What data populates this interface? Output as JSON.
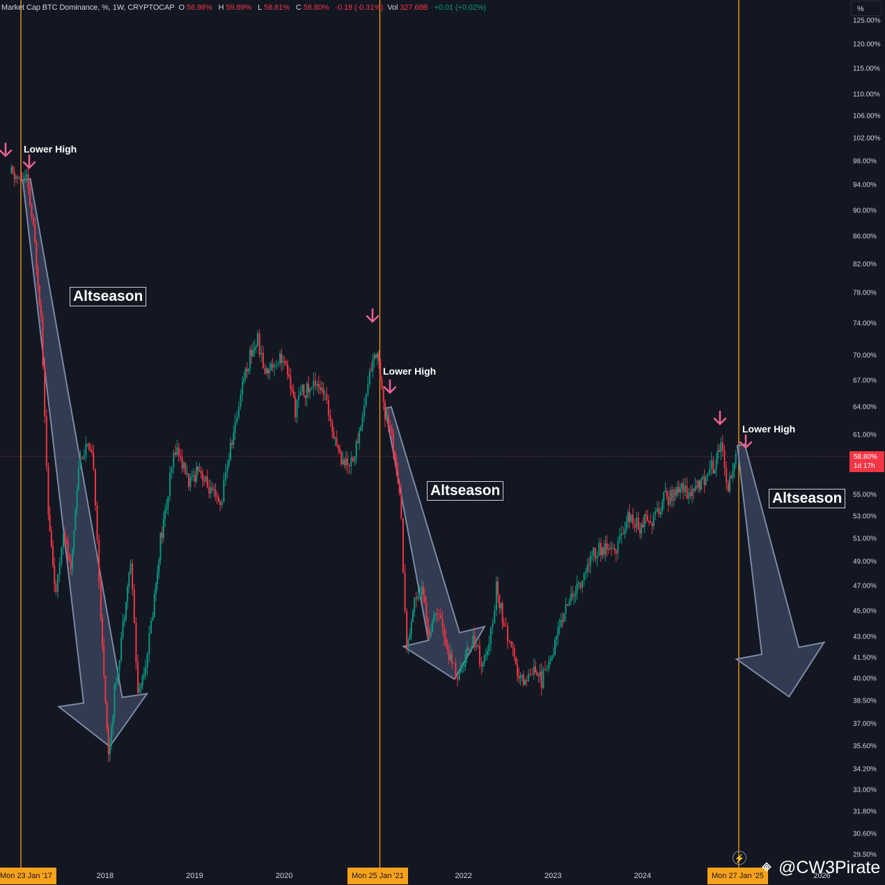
{
  "header": {
    "title": "Market Cap BTC Dominance, %, 1W, CRYPTOCAP",
    "o_label": "O",
    "o_value": "58.98%",
    "h_label": "H",
    "h_value": "59.89%",
    "l_label": "L",
    "l_value": "58.61%",
    "c_label": "C",
    "c_value": "58.80%",
    "change": "-0.18 (-0.31%)",
    "vol_label": "Vol",
    "vol_value": "327.68B",
    "vol_change": "+0.01 (+0.02%)"
  },
  "scale_button": "%",
  "price_tag": {
    "price": "58.80%",
    "countdown": "1d 17h"
  },
  "watermark": "@CW3Pirate",
  "vertical_markers": [
    "Mon 23 Jan '17",
    "Mon 25 Jan '21",
    "Mon 27 Jan '25"
  ],
  "annotations": {
    "lower_high": "Lower High",
    "altseason": "Altseason"
  },
  "colors": {
    "background": "#131722",
    "up": "#089981",
    "down": "#f23645",
    "marker_line": "#f7a21b",
    "arrow": "#f06292",
    "projection_fill": "#4a5a78"
  },
  "chart_data": {
    "type": "candlestick",
    "title": "Market Cap BTC Dominance, %, 1W, CRYPTOCAP",
    "y_scale": "log",
    "y_ticks": [
      "29.50%",
      "30.60%",
      "31.80%",
      "33.00%",
      "34.20%",
      "35.60%",
      "37.00%",
      "38.50%",
      "40.00%",
      "41.50%",
      "43.00%",
      "45.00%",
      "47.00%",
      "49.00%",
      "51.00%",
      "53.00%",
      "55.00%",
      "58.00%",
      "61.00%",
      "64.00%",
      "67.00%",
      "70.00%",
      "74.00%",
      "78.00%",
      "82.00%",
      "86.00%",
      "90.00%",
      "94.00%",
      "98.00%",
      "102.00%",
      "106.00%",
      "110.00%",
      "115.00%",
      "120.00%",
      "125.00%"
    ],
    "x_ticks": [
      "2018",
      "2019",
      "2020",
      "2022",
      "2023",
      "2024",
      "2026"
    ],
    "last_close": 58.8,
    "approx_series": [
      {
        "date": "2016-12",
        "value": 96
      },
      {
        "date": "2017-01",
        "value": 95
      },
      {
        "date": "2017-02",
        "value": 95
      },
      {
        "date": "2017-03",
        "value": 87
      },
      {
        "date": "2017-04",
        "value": 75
      },
      {
        "date": "2017-05",
        "value": 53
      },
      {
        "date": "2017-06",
        "value": 46
      },
      {
        "date": "2017-07",
        "value": 52
      },
      {
        "date": "2017-08",
        "value": 48
      },
      {
        "date": "2017-09",
        "value": 58
      },
      {
        "date": "2017-10",
        "value": 60
      },
      {
        "date": "2017-11",
        "value": 58
      },
      {
        "date": "2017-12",
        "value": 44
      },
      {
        "date": "2018-01",
        "value": 35
      },
      {
        "date": "2018-02",
        "value": 40
      },
      {
        "date": "2018-03",
        "value": 44
      },
      {
        "date": "2018-04",
        "value": 49
      },
      {
        "date": "2018-05",
        "value": 39
      },
      {
        "date": "2018-06",
        "value": 41
      },
      {
        "date": "2018-07",
        "value": 45
      },
      {
        "date": "2018-08",
        "value": 51
      },
      {
        "date": "2018-09",
        "value": 55
      },
      {
        "date": "2018-10",
        "value": 60
      },
      {
        "date": "2018-12",
        "value": 56
      },
      {
        "date": "2019-01",
        "value": 58
      },
      {
        "date": "2019-02",
        "value": 56
      },
      {
        "date": "2019-03",
        "value": 55
      },
      {
        "date": "2019-04",
        "value": 54
      },
      {
        "date": "2019-05",
        "value": 58
      },
      {
        "date": "2019-06",
        "value": 62
      },
      {
        "date": "2019-07",
        "value": 67
      },
      {
        "date": "2019-08",
        "value": 70
      },
      {
        "date": "2019-09",
        "value": 72
      },
      {
        "date": "2019-10",
        "value": 68
      },
      {
        "date": "2019-11",
        "value": 69
      },
      {
        "date": "2019-12",
        "value": 70
      },
      {
        "date": "2020-01",
        "value": 68
      },
      {
        "date": "2020-02",
        "value": 64
      },
      {
        "date": "2020-03",
        "value": 66
      },
      {
        "date": "2020-04",
        "value": 66
      },
      {
        "date": "2020-05",
        "value": 67
      },
      {
        "date": "2020-06",
        "value": 65
      },
      {
        "date": "2020-07",
        "value": 62
      },
      {
        "date": "2020-08",
        "value": 59
      },
      {
        "date": "2020-09",
        "value": 58
      },
      {
        "date": "2020-10",
        "value": 59
      },
      {
        "date": "2020-11",
        "value": 63
      },
      {
        "date": "2020-12",
        "value": 68
      },
      {
        "date": "2021-01",
        "value": 71
      },
      {
        "date": "2021-02",
        "value": 63
      },
      {
        "date": "2021-03",
        "value": 61
      },
      {
        "date": "2021-04",
        "value": 56
      },
      {
        "date": "2021-05",
        "value": 42
      },
      {
        "date": "2021-06",
        "value": 46
      },
      {
        "date": "2021-07",
        "value": 47
      },
      {
        "date": "2021-08",
        "value": 43
      },
      {
        "date": "2021-09",
        "value": 45
      },
      {
        "date": "2021-10",
        "value": 43
      },
      {
        "date": "2021-11",
        "value": 41
      },
      {
        "date": "2021-12",
        "value": 40
      },
      {
        "date": "2022-01",
        "value": 42
      },
      {
        "date": "2022-02",
        "value": 43
      },
      {
        "date": "2022-03",
        "value": 41
      },
      {
        "date": "2022-04",
        "value": 42
      },
      {
        "date": "2022-05",
        "value": 47
      },
      {
        "date": "2022-06",
        "value": 44
      },
      {
        "date": "2022-07",
        "value": 42
      },
      {
        "date": "2022-08",
        "value": 40
      },
      {
        "date": "2022-09",
        "value": 40
      },
      {
        "date": "2022-10",
        "value": 41
      },
      {
        "date": "2022-11",
        "value": 40
      },
      {
        "date": "2022-12",
        "value": 41
      },
      {
        "date": "2023-01",
        "value": 43
      },
      {
        "date": "2023-02",
        "value": 45
      },
      {
        "date": "2023-03",
        "value": 46
      },
      {
        "date": "2023-04",
        "value": 47
      },
      {
        "date": "2023-05",
        "value": 48
      },
      {
        "date": "2023-06",
        "value": 50
      },
      {
        "date": "2023-07",
        "value": 50
      },
      {
        "date": "2023-08",
        "value": 50
      },
      {
        "date": "2023-09",
        "value": 50
      },
      {
        "date": "2023-10",
        "value": 52
      },
      {
        "date": "2023-11",
        "value": 53
      },
      {
        "date": "2023-12",
        "value": 52
      },
      {
        "date": "2024-01",
        "value": 53
      },
      {
        "date": "2024-02",
        "value": 53
      },
      {
        "date": "2024-03",
        "value": 54
      },
      {
        "date": "2024-04",
        "value": 55
      },
      {
        "date": "2024-05",
        "value": 55
      },
      {
        "date": "2024-06",
        "value": 56
      },
      {
        "date": "2024-07",
        "value": 55
      },
      {
        "date": "2024-08",
        "value": 56
      },
      {
        "date": "2024-09",
        "value": 57
      },
      {
        "date": "2024-10",
        "value": 58
      },
      {
        "date": "2024-11",
        "value": 60
      },
      {
        "date": "2024-12",
        "value": 56
      },
      {
        "date": "2025-01",
        "value": 59
      }
    ],
    "annotations": [
      {
        "label": "Lower High",
        "date": "2017-01",
        "value": 96
      },
      {
        "label": "Altseason",
        "from": "2017-02",
        "to": "2018-01"
      },
      {
        "label": "Lower High",
        "date": "2021-02",
        "value": 65
      },
      {
        "label": "Altseason",
        "from": "2021-02",
        "to": "2021-12"
      },
      {
        "label": "Lower High",
        "date": "2025-01",
        "value": 59
      },
      {
        "label": "Altseason",
        "from": "2025-02",
        "to": "2025-10",
        "projected": true
      }
    ]
  }
}
